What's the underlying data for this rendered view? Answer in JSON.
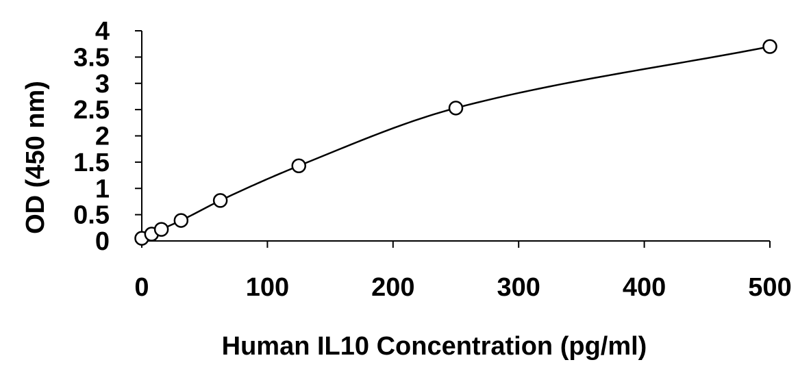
{
  "chart_data": {
    "type": "scatter",
    "title": "",
    "xlabel": "Human IL10 Concentration (pg/ml)",
    "ylabel": "OD (450 nm)",
    "xlim": [
      0,
      500
    ],
    "ylim": [
      0,
      4
    ],
    "x_ticks": [
      0,
      100,
      200,
      300,
      400,
      500
    ],
    "y_ticks": [
      0,
      0.5,
      1,
      1.5,
      2,
      2.5,
      3,
      3.5,
      4
    ],
    "x_tick_labels": [
      "0",
      "100",
      "200",
      "300",
      "400",
      "500"
    ],
    "y_tick_labels": [
      "0",
      "0.5",
      "1",
      "1.5",
      "2",
      "2.5",
      "3",
      "3.5",
      "4"
    ],
    "grid": false,
    "series": [
      {
        "marker": "open-circle",
        "line": "smooth-fit",
        "color": "#000000",
        "points": [
          {
            "x": 0,
            "y": 0.05
          },
          {
            "x": 7.8,
            "y": 0.13
          },
          {
            "x": 15.6,
            "y": 0.22
          },
          {
            "x": 31.25,
            "y": 0.39
          },
          {
            "x": 62.5,
            "y": 0.77
          },
          {
            "x": 125,
            "y": 1.43
          },
          {
            "x": 250,
            "y": 2.53
          },
          {
            "x": 500,
            "y": 3.7
          }
        ]
      }
    ]
  }
}
